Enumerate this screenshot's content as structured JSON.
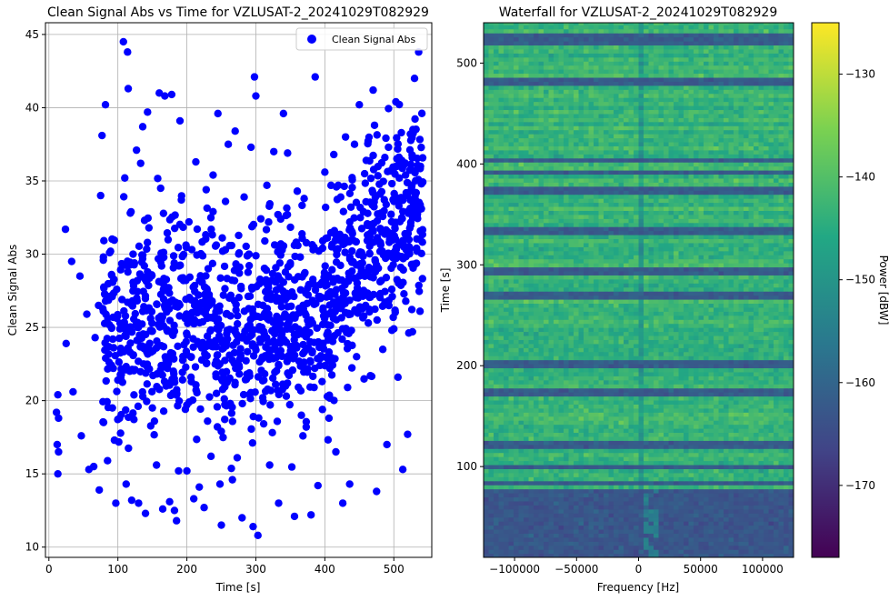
{
  "chart_data": [
    {
      "type": "scatter",
      "title": "Clean Signal Abs vs Time for VZLUSAT-2_20241029T082929",
      "xlabel": "Time [s]",
      "ylabel": "Clean Signal Abs",
      "xlim": [
        -5,
        555
      ],
      "ylim": [
        9.3,
        45.8
      ],
      "xticks": [
        0,
        100,
        200,
        300,
        400,
        500
      ],
      "yticks": [
        10,
        15,
        20,
        25,
        30,
        35,
        40,
        45
      ],
      "grid": true,
      "legend": {
        "placement": "top-right",
        "entries": [
          "Clean Signal Abs"
        ]
      },
      "marker_color": "#0000ff",
      "series": [
        {
          "name": "Clean Signal Abs",
          "description_of_distribution": "approx. 1500 points; x spans 10-540 s with sparse points below 80 s; y spans 10.8-44.5, densest between 18 and 36, upper envelope rising to ~38 near x 400-480",
          "points": [
            [
              11,
              19.2
            ],
            [
              12,
              17.0
            ],
            [
              13,
              15.0
            ],
            [
              13,
              20.4
            ],
            [
              14,
              18.8
            ],
            [
              14,
              16.5
            ],
            [
              24,
              31.7
            ],
            [
              25,
              23.9
            ],
            [
              33,
              29.5
            ],
            [
              35,
              20.6
            ],
            [
              45,
              28.5
            ],
            [
              47,
              17.6
            ],
            [
              55,
              25.9
            ],
            [
              58,
              15.3
            ],
            [
              65,
              15.5
            ],
            [
              67,
              24.3
            ],
            [
              72,
              26.5
            ],
            [
              73,
              13.9
            ],
            [
              75,
              34.0
            ],
            [
              77,
              38.1
            ],
            [
              79,
              29.8
            ],
            [
              82,
              40.2
            ],
            [
              85,
              15.9
            ],
            [
              88,
              30.1
            ],
            [
              92,
              19.5
            ],
            [
              95,
              17.3
            ],
            [
              97,
              13.0
            ],
            [
              100,
              21.4
            ],
            [
              103,
              24.9
            ],
            [
              106,
              26.9
            ],
            [
              108,
              44.5
            ],
            [
              110,
              35.2
            ],
            [
              112,
              14.3
            ],
            [
              114,
              43.8
            ],
            [
              115,
              41.3
            ],
            [
              118,
              32.8
            ],
            [
              120,
              13.2
            ],
            [
              122,
              30.0
            ],
            [
              124,
              29.4
            ],
            [
              127,
              37.1
            ],
            [
              130,
              13.0
            ],
            [
              133,
              36.2
            ],
            [
              136,
              38.7
            ],
            [
              140,
              12.3
            ],
            [
              143,
              39.7
            ],
            [
              145,
              31.8
            ],
            [
              148,
              23.3
            ],
            [
              150,
              19.5
            ],
            [
              153,
              18.6
            ],
            [
              156,
              15.6
            ],
            [
              160,
              41.0
            ],
            [
              162,
              34.5
            ],
            [
              165,
              12.6
            ],
            [
              168,
              40.8
            ],
            [
              170,
              21.0
            ],
            [
              172,
              22.2
            ],
            [
              175,
              13.1
            ],
            [
              178,
              40.9
            ],
            [
              180,
              20.5
            ],
            [
              182,
              12.5
            ],
            [
              185,
              11.8
            ],
            [
              188,
              15.2
            ],
            [
              190,
              39.1
            ],
            [
              192,
              33.7
            ],
            [
              195,
              28.2
            ],
            [
              200,
              15.2
            ],
            [
              203,
              32.2
            ],
            [
              206,
              21.6
            ],
            [
              210,
              13.3
            ],
            [
              213,
              36.3
            ],
            [
              215,
              26.0
            ],
            [
              218,
              14.1
            ],
            [
              222,
              28.1
            ],
            [
              225,
              12.7
            ],
            [
              228,
              34.4
            ],
            [
              230,
              18.6
            ],
            [
              233,
              24.0
            ],
            [
              235,
              16.2
            ],
            [
              238,
              35.4
            ],
            [
              241,
              22.5
            ],
            [
              245,
              39.6
            ],
            [
              248,
              14.3
            ],
            [
              250,
              11.5
            ],
            [
              253,
              27.2
            ],
            [
              256,
              33.6
            ],
            [
              260,
              37.5
            ],
            [
              263,
              19.8
            ],
            [
              266,
              14.6
            ],
            [
              270,
              38.4
            ],
            [
              273,
              16.1
            ],
            [
              276,
              28.7
            ],
            [
              280,
              12.0
            ],
            [
              283,
              33.9
            ],
            [
              287,
              21.8
            ],
            [
              290,
              30.0
            ],
            [
              293,
              37.3
            ],
            [
              296,
              11.4
            ],
            [
              298,
              42.1
            ],
            [
              300,
              40.8
            ],
            [
              303,
              10.8
            ],
            [
              306,
              24.2
            ],
            [
              310,
              20.2
            ],
            [
              313,
              30.9
            ],
            [
              316,
              34.7
            ],
            [
              320,
              15.6
            ],
            [
              323,
              28.2
            ],
            [
              326,
              37.0
            ],
            [
              330,
              26.8
            ],
            [
              333,
              13.0
            ],
            [
              336,
              32.4
            ],
            [
              340,
              39.6
            ],
            [
              343,
              21.0
            ],
            [
              346,
              36.9
            ],
            [
              350,
              29.4
            ],
            [
              353,
              23.7
            ],
            [
              356,
              12.1
            ],
            [
              360,
              34.3
            ],
            [
              363,
              26.0
            ],
            [
              366,
              19.0
            ],
            [
              370,
              33.8
            ],
            [
              373,
              18.2
            ],
            [
              376,
              23.6
            ],
            [
              380,
              12.2
            ],
            [
              383,
              30.3
            ],
            [
              386,
              42.1
            ],
            [
              390,
              14.2
            ],
            [
              393,
              27.1
            ],
            [
              396,
              21.3
            ],
            [
              400,
              35.6
            ],
            [
              403,
              24.5
            ],
            [
              406,
              18.8
            ],
            [
              410,
              30.5
            ],
            [
              413,
              36.8
            ],
            [
              416,
              16.5
            ],
            [
              420,
              26.9
            ],
            [
              423,
              33.9
            ],
            [
              426,
              13.0
            ],
            [
              430,
              38.0
            ],
            [
              433,
              20.9
            ],
            [
              436,
              14.3
            ],
            [
              440,
              31.4
            ],
            [
              443,
              37.5
            ],
            [
              446,
              23.0
            ],
            [
              450,
              40.2
            ],
            [
              453,
              28.8
            ],
            [
              456,
              32.9
            ],
            [
              460,
              36.4
            ],
            [
              463,
              25.3
            ],
            [
              466,
              21.7
            ],
            [
              470,
              41.2
            ],
            [
              472,
              38.8
            ],
            [
              475,
              13.8
            ],
            [
              478,
              30.9
            ],
            [
              480,
              34.1
            ],
            [
              484,
              23.5
            ],
            [
              487,
              36.6
            ],
            [
              490,
              17.0
            ],
            [
              494,
              31.0
            ],
            [
              497,
              27.6
            ],
            [
              500,
              24.9
            ],
            [
              503,
              40.4
            ],
            [
              506,
              21.6
            ],
            [
              510,
              29.1
            ],
            [
              513,
              15.3
            ],
            [
              517,
              35.4
            ],
            [
              520,
              17.7
            ],
            [
              524,
              38.2
            ],
            [
              527,
              24.7
            ],
            [
              530,
              42.0
            ],
            [
              533,
              30.4
            ],
            [
              536,
              43.8
            ],
            [
              538,
              26.1
            ],
            [
              540,
              34.8
            ]
          ]
        }
      ]
    },
    {
      "type": "heatmap",
      "title": "Waterfall for VZLUSAT-2_20241029T082929",
      "xlabel": "Frequency [Hz]",
      "ylabel": "Time [s]",
      "xlim": [
        -125000,
        125000
      ],
      "ylim": [
        10,
        540
      ],
      "xticks": [
        -100000,
        -50000,
        0,
        50000,
        100000
      ],
      "yticks": [
        100,
        200,
        300,
        400,
        500
      ],
      "colormap": "viridis",
      "colorbar": {
        "label": "Power [dBW]",
        "range": [
          -177,
          -125
        ],
        "ticks": [
          -130,
          -140,
          -150,
          -160,
          -170
        ]
      },
      "colors": {
        "viridis_stops": [
          "#440154",
          "#414487",
          "#2a788e",
          "#22a884",
          "#7ad151",
          "#fde725"
        ]
      },
      "regions": [
        {
          "time_range": [
            10,
            75
          ],
          "description": "low-power noise floor",
          "power": -163
        },
        {
          "time_range": [
            75,
            540
          ],
          "description": "higher-power broadband band-structured noise",
          "power": -143
        }
      ],
      "dark_bands_time": [
        82,
        98,
        118,
        122,
        170,
        172,
        200,
        202,
        268,
        270,
        290,
        292,
        330,
        335,
        372,
        390,
        402,
        478,
        480,
        520,
        525
      ]
    }
  ]
}
